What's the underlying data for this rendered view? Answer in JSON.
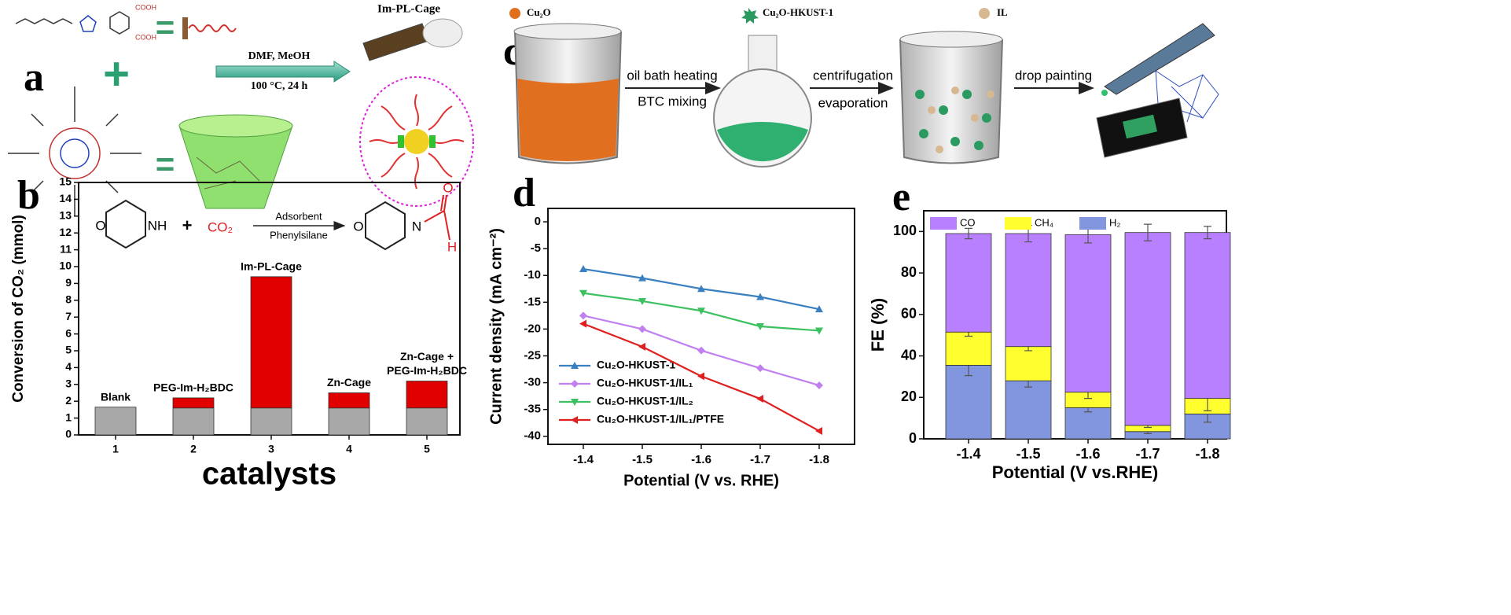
{
  "panels": {
    "a": "a",
    "b": "b",
    "c": "c",
    "d": "d",
    "e": "e"
  },
  "scheme_a": {
    "cooh_top": "COOH",
    "cooh_bottom": "COOH",
    "equals_top": "=",
    "plus": "+",
    "equals_bottom": "=",
    "conditions_top": "DMF, MeOH",
    "conditions_bottom": "100 °C, 24 h",
    "product": "Im-PL-Cage"
  },
  "scheme_c": {
    "legend": [
      "Cu₂O",
      "Cu₂O-HKUST-1",
      "IL"
    ],
    "step1_top": "oil bath heating",
    "step1_bottom": "BTC mixing",
    "step2_top": "centrifugation",
    "step2_bottom": "evaporation",
    "step3": "drop painting"
  },
  "chart_data": [
    {
      "type": "bar",
      "xlabel": "catalysts",
      "ylabel": "Conversion of CO₂ (mmol)",
      "categories": [
        "1",
        "2",
        "3",
        "4",
        "5"
      ],
      "bar_labels": [
        [
          "Blank"
        ],
        [
          "PEG-Im-H₂BDC"
        ],
        [
          "Im-PL-Cage"
        ],
        [
          "Zn-Cage"
        ],
        [
          "Zn-Cage +",
          "PEG-Im-H₂BDC"
        ]
      ],
      "series": [
        {
          "color": "#a8a8a8",
          "values": [
            1.65,
            1.6,
            1.6,
            1.6,
            1.6
          ]
        },
        {
          "color": "#e00000",
          "values": [
            0,
            0.6,
            7.8,
            0.9,
            1.6
          ]
        }
      ],
      "ylim": [
        0,
        15
      ],
      "yticks": [
        0,
        1,
        2,
        3,
        4,
        5,
        6,
        7,
        8,
        9,
        10,
        11,
        12,
        13,
        14,
        15
      ],
      "reaction": {
        "ring_o": "O",
        "amine": "NH",
        "plus": "+",
        "co2": "CO₂",
        "above_arrow": "Adsorbent",
        "below_arrow": "Phenylsilane",
        "product_o": "O",
        "product_n": "N",
        "carbonyl_o": "O",
        "aldehyde_h": "H"
      }
    },
    {
      "type": "line",
      "xlabel": "Potential (V vs. RHE)",
      "ylabel": "Current density (mA cm⁻²)",
      "x": [
        -1.4,
        -1.5,
        -1.6,
        -1.7,
        -1.8
      ],
      "xlim": [
        -1.34,
        -1.86
      ],
      "xticks": [
        -1.4,
        -1.5,
        -1.6,
        -1.7,
        -1.8
      ],
      "ylim": [
        -41.5,
        2.5
      ],
      "yticks": [
        0,
        -5,
        -10,
        -15,
        -20,
        -25,
        -30,
        -35,
        -40
      ],
      "legend": "lower left",
      "series": [
        {
          "name": "Cu₂O-HKUST-1",
          "color": "#3a80c0",
          "marker": "triangle-up",
          "values": [
            -8.8,
            -10.5,
            -12.5,
            -14,
            -16.3
          ]
        },
        {
          "name": "Cu₂O-HKUST-1/IL₁",
          "color": "#c080f0",
          "marker": "diamond",
          "values": [
            -17.5,
            -20,
            -24,
            -27.3,
            -30.5
          ]
        },
        {
          "name": "Cu₂O-HKUST-1/IL₂",
          "color": "#3cc060",
          "marker": "triangle-down",
          "values": [
            -13.3,
            -14.8,
            -16.6,
            -19.5,
            -20.3
          ]
        },
        {
          "name": "Cu₂O-HKUST-1/IL₁/PTFE",
          "color": "#e02020",
          "marker": "triangle-left",
          "values": [
            -19,
            -23.3,
            -28.8,
            -33,
            -39
          ]
        }
      ]
    },
    {
      "type": "bar",
      "xlabel": "Potential (V vs.RHE)",
      "ylabel": "FE (%)",
      "categories": [
        "-1.4",
        "-1.5",
        "-1.6",
        "-1.7",
        "-1.8"
      ],
      "legend": "top",
      "series": [
        {
          "name": "H₂",
          "color": "#8296e0",
          "values": [
            35.5,
            28,
            15,
            3.5,
            12
          ],
          "errors": [
            5,
            3,
            2,
            1,
            4
          ]
        },
        {
          "name": "CH₄",
          "color": "#ffff30",
          "values": [
            16,
            16.5,
            7.5,
            3,
            7.5
          ],
          "errors": [
            2,
            2,
            3,
            1,
            6
          ]
        },
        {
          "name": "CO",
          "color": "#b880ff",
          "values": [
            47.5,
            54.5,
            76,
            93,
            80
          ],
          "errors": [
            2.5,
            4,
            4,
            4,
            3
          ]
        }
      ],
      "ylim": [
        0,
        110
      ],
      "yticks": [
        0,
        20,
        40,
        60,
        80,
        100
      ]
    }
  ]
}
